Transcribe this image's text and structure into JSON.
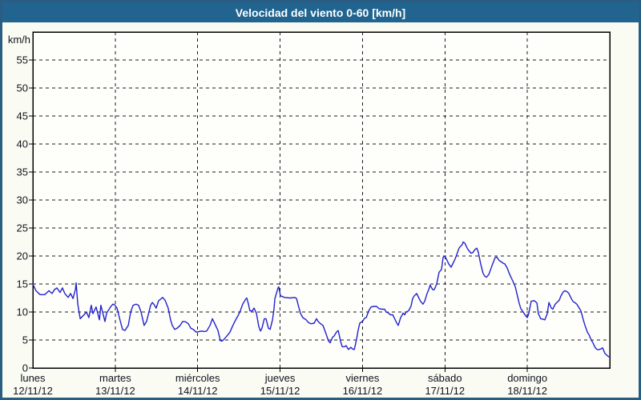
{
  "window": {
    "title": "Velocidad del viento 0-60 [km/h]"
  },
  "colors": {
    "frame_border": "#2b5c82",
    "title_bar": "#20648f",
    "title_text": "#ffffff",
    "background": "#fafcf4",
    "plot_background": "#fefefb",
    "grid": "#1c1c1c",
    "axis": "#000000",
    "label_text": "#10121c",
    "line": "#2222cc"
  },
  "chart_data": {
    "type": "line",
    "title": "Velocidad del viento 0-60 [km/h]",
    "grid_style": "dashed",
    "legend": "none",
    "y_axis": {
      "unit_label": "km/h",
      "min": 0,
      "max": 60,
      "tick_step": 5,
      "labeled_ticks": [
        0,
        5,
        10,
        15,
        20,
        25,
        30,
        35,
        40,
        45,
        50,
        55
      ]
    },
    "x_axis": {
      "span_hours": 168,
      "days": [
        {
          "name": "lunes",
          "date": "12/11/12"
        },
        {
          "name": "martes",
          "date": "13/11/12"
        },
        {
          "name": "miércoles",
          "date": "14/11/12"
        },
        {
          "name": "jueves",
          "date": "15/11/12"
        },
        {
          "name": "viernes",
          "date": "16/11/12"
        },
        {
          "name": "sábado",
          "date": "17/11/12"
        },
        {
          "name": "domingo",
          "date": "18/11/12"
        }
      ]
    },
    "series": [
      {
        "name": "Velocidad del viento 0-60 [km/h]",
        "color": "#2222cc",
        "points": [
          [
            0,
            15
          ],
          [
            0.9,
            13.8
          ],
          [
            2.1,
            13.1
          ],
          [
            3.5,
            13.1
          ],
          [
            4.7,
            13.8
          ],
          [
            5.6,
            13.3
          ],
          [
            6.3,
            14
          ],
          [
            7,
            14.3
          ],
          [
            7.9,
            13.5
          ],
          [
            8.6,
            14.3
          ],
          [
            9.3,
            13.3
          ],
          [
            10.3,
            12.6
          ],
          [
            11,
            13.3
          ],
          [
            11.7,
            12.4
          ],
          [
            12.4,
            14
          ],
          [
            12.6,
            15.2
          ],
          [
            13.1,
            11.4
          ],
          [
            13.8,
            8.8
          ],
          [
            14.9,
            9.5
          ],
          [
            15.6,
            10
          ],
          [
            16.3,
            9
          ],
          [
            17,
            11.2
          ],
          [
            17.5,
            9.7
          ],
          [
            18.4,
            10.9
          ],
          [
            19.4,
            8.6
          ],
          [
            19.8,
            11.2
          ],
          [
            21,
            8.3
          ],
          [
            21.5,
            9.8
          ],
          [
            22.6,
            10.9
          ],
          [
            23.3,
            11.4
          ],
          [
            23.8,
            11.3
          ],
          [
            24.5,
            10.7
          ],
          [
            25.4,
            8.5
          ],
          [
            26.1,
            6.9
          ],
          [
            26.8,
            6.7
          ],
          [
            27.8,
            7.6
          ],
          [
            28.5,
            10
          ],
          [
            29.2,
            11.2
          ],
          [
            30.1,
            11.4
          ],
          [
            30.8,
            11.2
          ],
          [
            31.5,
            10
          ],
          [
            32.4,
            7.6
          ],
          [
            33.1,
            8.3
          ],
          [
            33.6,
            9.5
          ],
          [
            34.3,
            11.2
          ],
          [
            34.8,
            11.7
          ],
          [
            35.2,
            11.4
          ],
          [
            35.9,
            10.7
          ],
          [
            36.6,
            12
          ],
          [
            37.8,
            12.6
          ],
          [
            38.5,
            12.1
          ],
          [
            39.4,
            10.7
          ],
          [
            40.1,
            8.6
          ],
          [
            40.6,
            7.6
          ],
          [
            41.3,
            6.9
          ],
          [
            42,
            7.1
          ],
          [
            42.9,
            7.6
          ],
          [
            43.6,
            8.3
          ],
          [
            44.3,
            8.3
          ],
          [
            45.3,
            7.9
          ],
          [
            46,
            7.1
          ],
          [
            46.7,
            6.9
          ],
          [
            47.6,
            6.4
          ],
          [
            48.3,
            6.5
          ],
          [
            49.2,
            6.6
          ],
          [
            49.9,
            6.5
          ],
          [
            50.6,
            6.6
          ],
          [
            51.6,
            7.6
          ],
          [
            52.3,
            8.8
          ],
          [
            53,
            7.9
          ],
          [
            53.9,
            6.7
          ],
          [
            54.6,
            4.9
          ],
          [
            55.1,
            4.8
          ],
          [
            55.8,
            5.2
          ],
          [
            56.5,
            5.7
          ],
          [
            57.4,
            6.4
          ],
          [
            58.1,
            7.4
          ],
          [
            58.8,
            8.3
          ],
          [
            59.7,
            9.3
          ],
          [
            60.4,
            10.2
          ],
          [
            61.1,
            11.4
          ],
          [
            62.1,
            12.4
          ],
          [
            62.3,
            12.5
          ],
          [
            62.8,
            11.4
          ],
          [
            63.2,
            10.2
          ],
          [
            63.9,
            10.2
          ],
          [
            64.4,
            10.7
          ],
          [
            65.1,
            9.8
          ],
          [
            65.8,
            7.4
          ],
          [
            66.3,
            6.6
          ],
          [
            66.7,
            7.1
          ],
          [
            67.4,
            8.8
          ],
          [
            67.9,
            8.8
          ],
          [
            68.6,
            7.1
          ],
          [
            69.1,
            6.9
          ],
          [
            69.8,
            8.6
          ],
          [
            70.2,
            10.5
          ],
          [
            70.5,
            12.4
          ],
          [
            70.9,
            13.3
          ],
          [
            71.4,
            14.3
          ],
          [
            71.6,
            14.5
          ],
          [
            72.1,
            12.9
          ],
          [
            73.3,
            12.6
          ],
          [
            74.9,
            12.5
          ],
          [
            76.3,
            12.6
          ],
          [
            76.8,
            12.4
          ],
          [
            77.2,
            11.4
          ],
          [
            77.9,
            9.8
          ],
          [
            78.6,
            9
          ],
          [
            79.6,
            8.6
          ],
          [
            80.3,
            8.1
          ],
          [
            81,
            7.9
          ],
          [
            81.9,
            8
          ],
          [
            82.6,
            8.8
          ],
          [
            83.1,
            8.3
          ],
          [
            83.8,
            7.9
          ],
          [
            84.5,
            7.6
          ],
          [
            84.9,
            6.9
          ],
          [
            85.6,
            5.7
          ],
          [
            86.1,
            4.8
          ],
          [
            86.6,
            4.5
          ],
          [
            87.3,
            5.5
          ],
          [
            87.7,
            5.7
          ],
          [
            88.4,
            6.4
          ],
          [
            88.9,
            6.7
          ],
          [
            89.1,
            6.2
          ],
          [
            89.6,
            4.8
          ],
          [
            90.1,
            3.8
          ],
          [
            90.8,
            3.8
          ],
          [
            91.2,
            4
          ],
          [
            91.9,
            3.3
          ],
          [
            92.6,
            3.7
          ],
          [
            93.1,
            3.4
          ],
          [
            93.6,
            3.3
          ],
          [
            93.8,
            3.8
          ],
          [
            94.3,
            5.2
          ],
          [
            94.7,
            6.7
          ],
          [
            95.2,
            8
          ],
          [
            96.1,
            8.4
          ],
          [
            96.6,
            8.9
          ],
          [
            97.1,
            9
          ],
          [
            97.8,
            10.2
          ],
          [
            98.5,
            10.9
          ],
          [
            99.4,
            11
          ],
          [
            100.1,
            11
          ],
          [
            100.8,
            10.6
          ],
          [
            101.7,
            10.5
          ],
          [
            102.4,
            10.5
          ],
          [
            102.9,
            10
          ],
          [
            103.6,
            9.8
          ],
          [
            104.1,
            9.5
          ],
          [
            104.8,
            9.5
          ],
          [
            105.2,
            9
          ],
          [
            105.9,
            8.1
          ],
          [
            106.4,
            7.6
          ],
          [
            107.1,
            9
          ],
          [
            107.6,
            9.5
          ],
          [
            107.8,
            9.8
          ],
          [
            108.3,
            9.5
          ],
          [
            108.7,
            10
          ],
          [
            109.4,
            10.2
          ],
          [
            110.1,
            11
          ],
          [
            110.6,
            12.4
          ],
          [
            111.1,
            12.9
          ],
          [
            111.8,
            13.3
          ],
          [
            112.5,
            12.4
          ],
          [
            112.9,
            11.9
          ],
          [
            113.6,
            11.4
          ],
          [
            114.1,
            11.9
          ],
          [
            114.8,
            13.3
          ],
          [
            115.3,
            14
          ],
          [
            115.7,
            14.8
          ],
          [
            116.4,
            14
          ],
          [
            116.9,
            14
          ],
          [
            117.6,
            15
          ],
          [
            118.3,
            17.1
          ],
          [
            119,
            17.6
          ],
          [
            119.5,
            19.8
          ],
          [
            119.9,
            20
          ],
          [
            120.4,
            19.5
          ],
          [
            121.1,
            18.6
          ],
          [
            121.8,
            18
          ],
          [
            122.3,
            18.6
          ],
          [
            123,
            19.5
          ],
          [
            123.4,
            20.2
          ],
          [
            124.1,
            21.4
          ],
          [
            125.1,
            22.1
          ],
          [
            125.3,
            22.5
          ],
          [
            125.8,
            22.3
          ],
          [
            126.5,
            21.4
          ],
          [
            126.9,
            21
          ],
          [
            127.6,
            20.5
          ],
          [
            128.1,
            20.6
          ],
          [
            128.8,
            21.2
          ],
          [
            129.3,
            21.4
          ],
          [
            129.7,
            20.7
          ],
          [
            130.4,
            18.6
          ],
          [
            131.1,
            16.9
          ],
          [
            131.6,
            16.4
          ],
          [
            132.1,
            16.2
          ],
          [
            132.8,
            16.7
          ],
          [
            133.5,
            17.9
          ],
          [
            133.9,
            18.6
          ],
          [
            134.6,
            19.7
          ],
          [
            135.1,
            19.8
          ],
          [
            135.8,
            19.2
          ],
          [
            136.3,
            19
          ],
          [
            137,
            18.7
          ],
          [
            137.4,
            18.6
          ],
          [
            138.1,
            17.9
          ],
          [
            138.6,
            17.1
          ],
          [
            139.1,
            16.4
          ],
          [
            139.8,
            15.5
          ],
          [
            140.5,
            14.5
          ],
          [
            140.9,
            13.4
          ],
          [
            141.6,
            11.6
          ],
          [
            142.1,
            10.6
          ],
          [
            142.8,
            10
          ],
          [
            143.3,
            9.5
          ],
          [
            144,
            9
          ],
          [
            144.4,
            9.7
          ],
          [
            145.1,
            11.9
          ],
          [
            145.6,
            12
          ],
          [
            146.1,
            12
          ],
          [
            146.8,
            11.6
          ],
          [
            147.2,
            9.7
          ],
          [
            147.9,
            8.8
          ],
          [
            148.6,
            8.7
          ],
          [
            149.1,
            8.6
          ],
          [
            149.8,
            9.7
          ],
          [
            150.3,
            11.7
          ],
          [
            151,
            10.7
          ],
          [
            151.4,
            10.5
          ],
          [
            152.1,
            11.4
          ],
          [
            152.6,
            11.7
          ],
          [
            153.3,
            12.1
          ],
          [
            153.8,
            12.9
          ],
          [
            154.5,
            13.6
          ],
          [
            154.9,
            13.8
          ],
          [
            155.6,
            13.6
          ],
          [
            156.1,
            13.3
          ],
          [
            156.8,
            12.4
          ],
          [
            157.3,
            11.9
          ],
          [
            158,
            11.6
          ],
          [
            158.4,
            11.4
          ],
          [
            159.1,
            10.7
          ],
          [
            159.6,
            10.2
          ],
          [
            160.3,
            8.6
          ],
          [
            160.8,
            7.6
          ],
          [
            161.5,
            6.4
          ],
          [
            161.9,
            6
          ],
          [
            162.6,
            5
          ],
          [
            163.1,
            4.5
          ],
          [
            163.8,
            3.6
          ],
          [
            164.3,
            3.3
          ],
          [
            165,
            3.3
          ],
          [
            165.4,
            3.4
          ],
          [
            165.9,
            3.6
          ],
          [
            166.6,
            2.6
          ],
          [
            167.3,
            2.2
          ],
          [
            167.7,
            2
          ]
        ]
      }
    ]
  }
}
